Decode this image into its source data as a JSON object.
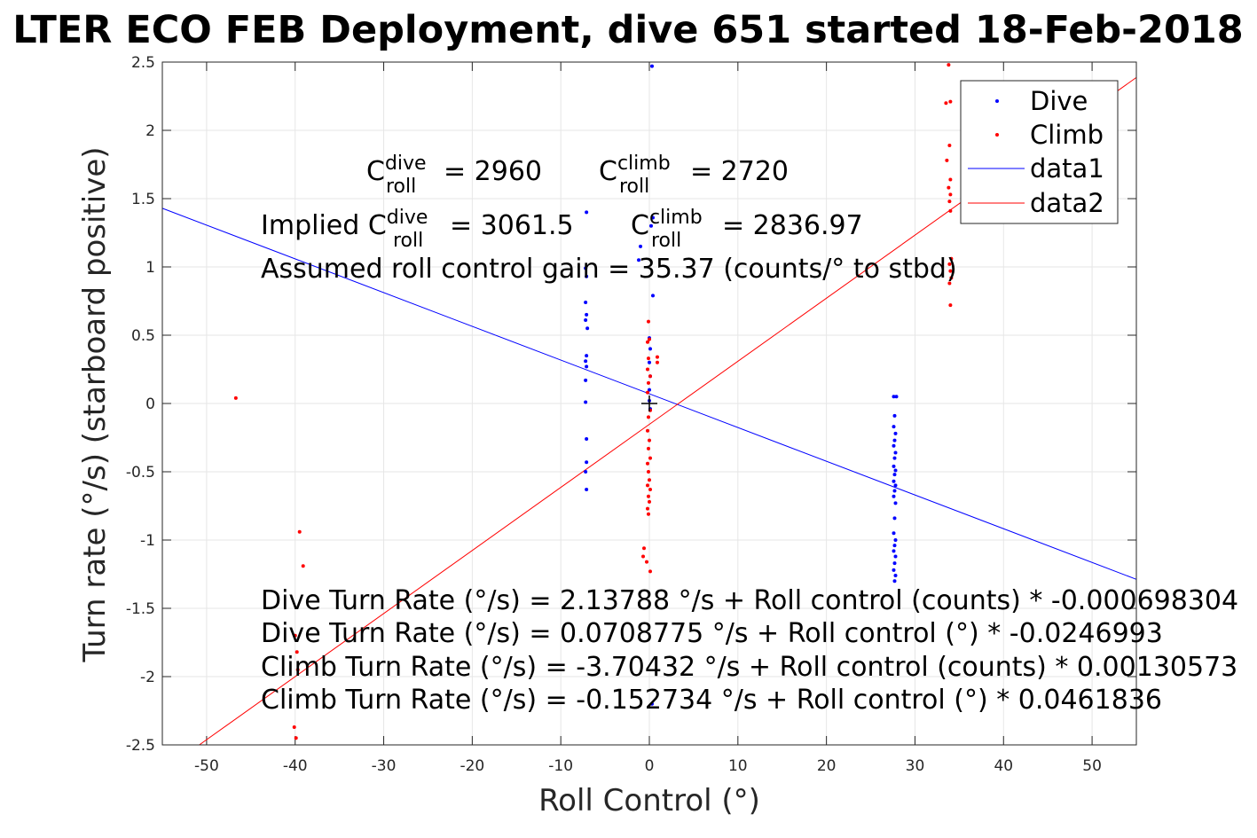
{
  "chart_data": {
    "type": "scatter",
    "title": "LTER ECO FEB Deployment, dive 651 started 18-Feb-2018",
    "xlabel": "Roll Control (°)",
    "ylabel": "Turn rate (°/s) (starboard positive)",
    "xlim": [
      -55,
      55
    ],
    "ylim": [
      -2.5,
      2.5
    ],
    "grid": true,
    "legend_position": "top-right",
    "x_ticks": [
      "-50",
      "-40",
      "-30",
      "-20",
      "-10",
      "0",
      "10",
      "20",
      "30",
      "40",
      "50"
    ],
    "y_ticks": [
      "-2.5",
      "-2",
      "-1.5",
      "-1",
      "-0.5",
      "0",
      "0.5",
      "1",
      "1.5",
      "2",
      "2.5"
    ],
    "colors": {
      "dive": "#0000ff",
      "climb": "#ff0000",
      "axis": "#262626",
      "grid": "#e6e6e6"
    },
    "legend": [
      "Dive",
      "Climb",
      "data1",
      "data2"
    ],
    "annotations": {
      "c_dive_prefix": "C",
      "c_dive_sup": "dive",
      "c_dive_sub": "roll",
      "c_dive_val": "= 2960",
      "c_climb_prefix": "C",
      "c_climb_sup": "climb",
      "c_climb_sub": "roll",
      "c_climb_val": "= 2720",
      "implied_prefix": "Implied C",
      "implied_dive_sup": "dive",
      "implied_dive_sub": "roll",
      "implied_dive_val": "= 3061.5",
      "implied_climb_prefix": "C",
      "implied_climb_sup": "climb",
      "implied_climb_sub": "roll",
      "implied_climb_val": "= 2836.97",
      "gain": "Assumed roll control gain = 35.37 (counts/° to stbd)",
      "eq1": "Dive Turn Rate (°/s) = 2.13788 °/s + Roll control (counts) * -0.000698304",
      "eq2": "Dive Turn Rate (°/s) = 0.0708775 °/s + Roll control (°) * -0.0246993",
      "eq3": "Climb Turn Rate (°/s) = -3.70432 °/s + Roll control (counts) * 0.00130573",
      "eq4": "Climb Turn Rate (°/s) = -0.152734 °/s + Roll control (°) * 0.0461836"
    },
    "fit_lines": [
      {
        "name": "data1",
        "color": "#0000ff",
        "intercept": 0.0708775,
        "slope": -0.0246993
      },
      {
        "name": "data2",
        "color": "#ff0000",
        "intercept": -0.152734,
        "slope": 0.0461836
      }
    ],
    "center_marker": [
      0,
      0
    ],
    "series": [
      {
        "name": "Dive",
        "color": "#0000ff",
        "points": [
          [
            0.3,
            2.47
          ],
          [
            -7.1,
            1.4
          ],
          [
            0.4,
            1.36
          ],
          [
            0.2,
            1.3
          ],
          [
            -1.0,
            1.15
          ],
          [
            -1.2,
            1.05
          ],
          [
            -7.2,
            0.99
          ],
          [
            -7.1,
            0.93
          ],
          [
            0.4,
            0.79
          ],
          [
            -7.2,
            0.74
          ],
          [
            -7.1,
            0.65
          ],
          [
            -7.2,
            0.61
          ],
          [
            -7.0,
            0.55
          ],
          [
            0.0,
            0.48
          ],
          [
            0.1,
            0.4
          ],
          [
            -7.1,
            0.35
          ],
          [
            -7.2,
            0.31
          ],
          [
            0.0,
            0.3
          ],
          [
            -7.1,
            0.27
          ],
          [
            0.1,
            0.2
          ],
          [
            -7.2,
            0.17
          ],
          [
            0.0,
            0.1
          ],
          [
            -7.2,
            0.01
          ],
          [
            0.0,
            0.02
          ],
          [
            0.1,
            -0.04
          ],
          [
            -7.1,
            -0.26
          ],
          [
            -7.1,
            -0.43
          ],
          [
            -7.2,
            -0.5
          ],
          [
            -7.1,
            -0.63
          ],
          [
            0.3,
            -2.2
          ],
          [
            27.6,
            0.05
          ],
          [
            27.9,
            0.05
          ],
          [
            27.7,
            -0.09
          ],
          [
            27.6,
            -0.17
          ],
          [
            27.8,
            -0.22
          ],
          [
            27.7,
            -0.27
          ],
          [
            27.6,
            -0.31
          ],
          [
            27.8,
            -0.36
          ],
          [
            27.7,
            -0.4
          ],
          [
            27.6,
            -0.46
          ],
          [
            27.8,
            -0.49
          ],
          [
            27.7,
            -0.52
          ],
          [
            27.6,
            -0.57
          ],
          [
            27.8,
            -0.6
          ],
          [
            27.7,
            -0.64
          ],
          [
            27.6,
            -0.68
          ],
          [
            27.8,
            -0.73
          ],
          [
            27.7,
            -0.84
          ],
          [
            27.6,
            -0.95
          ],
          [
            27.8,
            -1.0
          ],
          [
            27.7,
            -1.04
          ],
          [
            27.6,
            -1.08
          ],
          [
            27.8,
            -1.12
          ],
          [
            27.7,
            -1.17
          ],
          [
            27.6,
            -1.22
          ],
          [
            27.8,
            -1.26
          ],
          [
            27.7,
            -1.3
          ]
        ]
      },
      {
        "name": "Climb",
        "color": "#ff0000",
        "points": [
          [
            -46.7,
            0.04
          ],
          [
            -39.5,
            -0.94
          ],
          [
            -39.1,
            -1.19
          ],
          [
            -40.0,
            -1.7
          ],
          [
            -39.8,
            -1.82
          ],
          [
            -39.7,
            -1.95
          ],
          [
            -40.1,
            -2.37
          ],
          [
            -39.9,
            -2.45
          ],
          [
            -0.1,
            0.6
          ],
          [
            0.0,
            0.47
          ],
          [
            -0.2,
            0.45
          ],
          [
            0.9,
            0.34
          ],
          [
            0.9,
            0.3
          ],
          [
            -0.1,
            0.33
          ],
          [
            -0.2,
            0.25
          ],
          [
            0.1,
            0.2
          ],
          [
            -0.1,
            0.15
          ],
          [
            -0.2,
            0.08
          ],
          [
            0.1,
            -0.05
          ],
          [
            -0.1,
            -0.1
          ],
          [
            -0.2,
            -0.2
          ],
          [
            0.0,
            -0.27
          ],
          [
            -0.1,
            -0.33
          ],
          [
            0.1,
            -0.4
          ],
          [
            -0.2,
            -0.44
          ],
          [
            -0.1,
            -0.5
          ],
          [
            0.0,
            -0.56
          ],
          [
            -0.2,
            -0.6
          ],
          [
            0.1,
            -0.63
          ],
          [
            -0.1,
            -0.68
          ],
          [
            0.0,
            -0.72
          ],
          [
            -0.2,
            -0.77
          ],
          [
            -0.1,
            -0.81
          ],
          [
            -0.6,
            -1.06
          ],
          [
            -0.7,
            -1.12
          ],
          [
            -0.3,
            -1.16
          ],
          [
            0.1,
            -1.23
          ],
          [
            33.8,
            2.48
          ],
          [
            33.5,
            2.2
          ],
          [
            34.0,
            2.21
          ],
          [
            33.9,
            1.89
          ],
          [
            33.6,
            1.78
          ],
          [
            34.0,
            1.64
          ],
          [
            33.8,
            1.58
          ],
          [
            34.0,
            1.53
          ],
          [
            33.9,
            1.48
          ],
          [
            34.0,
            1.41
          ],
          [
            34.1,
            1.06
          ],
          [
            33.9,
            1.02
          ],
          [
            34.0,
            0.97
          ],
          [
            34.1,
            0.92
          ],
          [
            33.9,
            0.88
          ],
          [
            34.0,
            0.72
          ]
        ]
      }
    ]
  }
}
